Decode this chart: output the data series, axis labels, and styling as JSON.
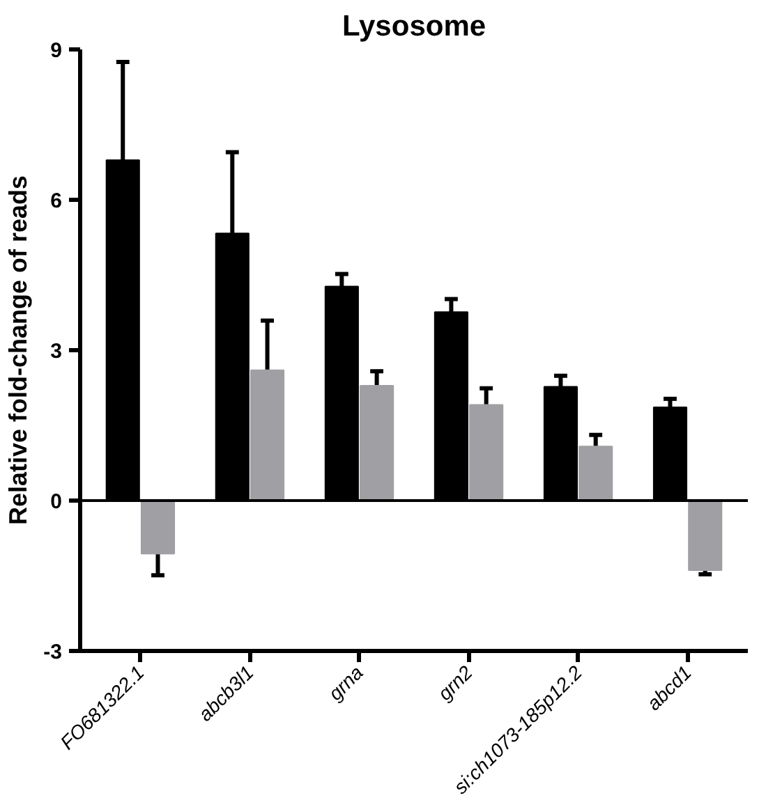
{
  "chart_data": {
    "type": "bar",
    "title": "Lysosome",
    "ylabel": "Relative fold-change of reads",
    "categories": [
      "FO681322.1",
      "abcb3l1",
      "grna",
      "grn2",
      "si:ch1073-185p12.2",
      "abcd1"
    ],
    "series": [
      {
        "color": "#000000",
        "values": [
          6.79,
          5.33,
          4.27,
          3.76,
          2.27,
          1.86
        ],
        "errors": [
          1.96,
          1.62,
          0.25,
          0.26,
          0.22,
          0.17
        ]
      },
      {
        "color": "#a0a0a4",
        "values": [
          -1.06,
          2.6,
          2.29,
          1.91,
          1.08,
          -1.39
        ],
        "errors": [
          0.43,
          0.99,
          0.29,
          0.33,
          0.23,
          0.08
        ]
      }
    ],
    "ylim": [
      -3,
      9
    ],
    "yticks": [
      -3,
      0,
      3,
      6,
      9
    ],
    "ref_lines": [
      {
        "axis": "y",
        "value": 0,
        "color": "#000000"
      }
    ],
    "grid": false
  }
}
